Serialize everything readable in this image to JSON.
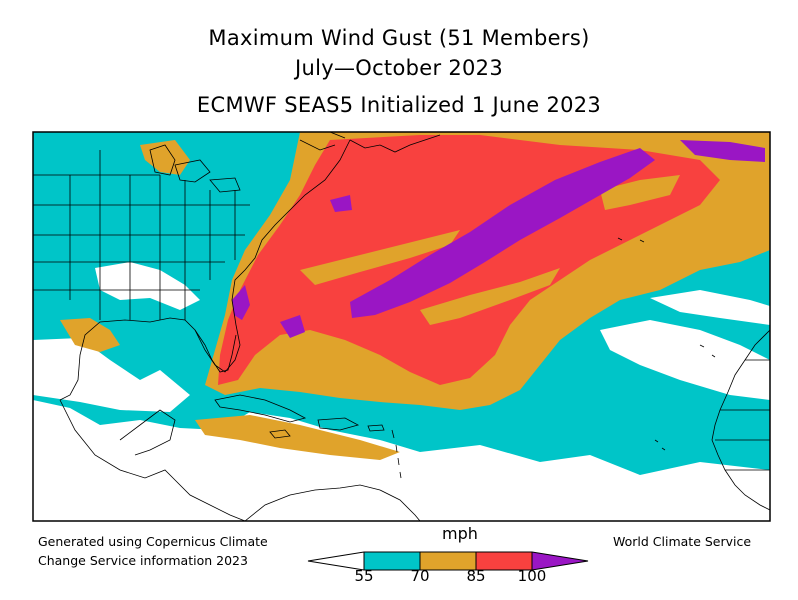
{
  "title": {
    "line1": "Maximum Wind Gust (51 Members)",
    "line2": "July—October 2023",
    "line3": "ECMWF SEAS5 Initialized 1 June 2023"
  },
  "credits": {
    "left_line1": "Generated using Copernicus Climate",
    "left_line2": "Change Service information 2023",
    "right": "World Climate Service"
  },
  "colorbar": {
    "unit": "mph",
    "ticks": [
      "55",
      "70",
      "85",
      "100"
    ],
    "bins": [
      {
        "range": "<55",
        "color": "#ffffff"
      },
      {
        "range": "55-70",
        "color": "#00c5c8"
      },
      {
        "range": "70-85",
        "color": "#e0a32b"
      },
      {
        "range": "85-100",
        "color": "#f8413f"
      },
      {
        "range": ">100",
        "color": "#9a16c4"
      }
    ]
  },
  "map": {
    "region": "North Atlantic",
    "colors": {
      "white": "#ffffff",
      "cyan": "#00c5c8",
      "orange": "#e0a32b",
      "red": "#f8413f",
      "purple": "#9a16c4",
      "border": "#000000"
    }
  }
}
